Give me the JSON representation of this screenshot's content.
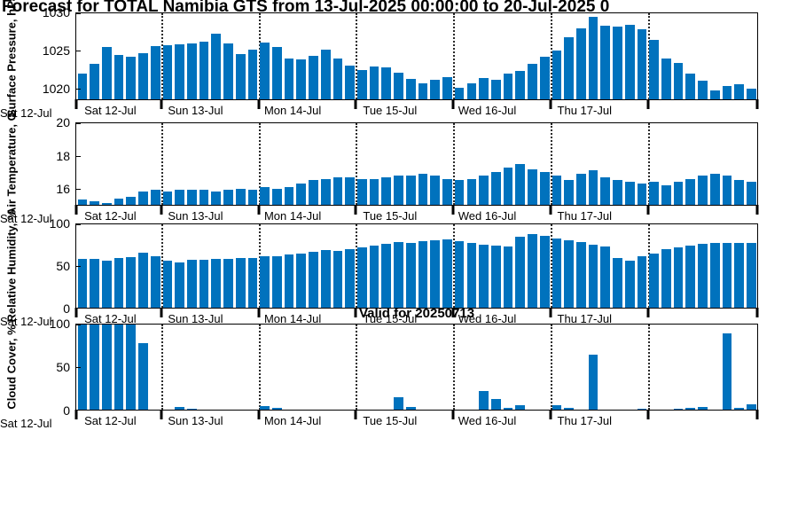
{
  "title": "Forecast for TOTAL Namibia GTS from 13-Jul-2025 00:00:00 to 20-Jul-2025 0",
  "annotation": "Valid for 20250713",
  "colors": {
    "bar": "#0072BD",
    "grid": "#2a2a2a",
    "axis": "#000000"
  },
  "x_axis": {
    "day_labels": [
      "Sat 12-Jul",
      "Sun 13-Jul",
      "Mon 14-Jul",
      "Tue 15-Jul",
      "Wed 16-Jul",
      "Thu 17-Jul"
    ],
    "left_edge_label": "Sat 12-Jul",
    "day_boundaries": [
      0,
      7,
      15,
      23,
      31,
      39,
      47
    ],
    "n_bars": 56,
    "gridlines": "vertical-dotted-at-day-boundaries"
  },
  "chart_data": [
    {
      "type": "bar",
      "ylabel": "Surface Pressure, hPa",
      "ylim": [
        1018.5,
        1030
      ],
      "yticks": [
        1020,
        1025,
        1030
      ],
      "values": [
        1021.9,
        1023.2,
        1025.5,
        1024.4,
        1024.2,
        1024.7,
        1025.6,
        1025.7,
        1025.8,
        1026.0,
        1026.2,
        1027.3,
        1026.0,
        1024.6,
        1025.1,
        1026.1,
        1025.5,
        1023.9,
        1023.8,
        1024.3,
        1025.1,
        1024.0,
        1023.0,
        1022.4,
        1022.9,
        1022.8,
        1022.0,
        1021.2,
        1020.6,
        1021.1,
        1021.5,
        1020.0,
        1020.6,
        1021.4,
        1021.1,
        1021.9,
        1022.3,
        1023.3,
        1024.2,
        1025.0,
        1026.8,
        1028.0,
        1029.5,
        1028.4,
        1028.2,
        1028.5,
        1027.9,
        1026.4,
        1023.9,
        1023.4,
        1021.9,
        1021.0,
        1019.7,
        1020.3,
        1020.5,
        1019.9
      ]
    },
    {
      "type": "bar",
      "ylabel": "Air Temperature, C",
      "ylim": [
        15,
        20
      ],
      "yticks": [
        16,
        18,
        20
      ],
      "values": [
        15.3,
        15.2,
        15.1,
        15.4,
        15.5,
        15.8,
        15.9,
        15.8,
        15.9,
        15.9,
        15.9,
        15.8,
        15.9,
        16.0,
        15.9,
        16.1,
        16.0,
        16.1,
        16.3,
        16.5,
        16.6,
        16.7,
        16.7,
        16.6,
        16.6,
        16.7,
        16.8,
        16.8,
        16.9,
        16.8,
        16.6,
        16.5,
        16.6,
        16.8,
        17.0,
        17.3,
        17.5,
        17.2,
        17.0,
        16.8,
        16.5,
        16.9,
        17.1,
        16.7,
        16.5,
        16.4,
        16.3,
        16.4,
        16.2,
        16.4,
        16.6,
        16.8,
        16.9,
        16.8,
        16.5,
        16.4
      ]
    },
    {
      "type": "bar",
      "ylabel": "Relative Humidity, %",
      "ylim": [
        0,
        100
      ],
      "yticks": [
        0,
        50,
        100
      ],
      "values": [
        58,
        58,
        56,
        60,
        61,
        66,
        62,
        56,
        54,
        57,
        57,
        58,
        58,
        60,
        60,
        62,
        62,
        64,
        65,
        67,
        69,
        68,
        70,
        72,
        74,
        77,
        79,
        78,
        80,
        81,
        82,
        80,
        78,
        76,
        75,
        73,
        85,
        88,
        86,
        83,
        81,
        79,
        76,
        73,
        60,
        56,
        62,
        65,
        70,
        72,
        75,
        77,
        78,
        78,
        78,
        78
      ]
    },
    {
      "type": "bar",
      "ylabel": "Cloud Cover, %",
      "ylim": [
        0,
        100
      ],
      "yticks": [
        0,
        50,
        100
      ],
      "values": [
        100,
        100,
        100,
        100,
        100,
        78,
        0,
        0,
        3,
        1,
        0,
        0,
        0,
        0,
        0,
        4,
        2,
        0,
        0,
        0,
        0,
        0,
        0,
        0,
        0,
        0,
        15,
        3,
        0,
        0,
        0,
        0,
        0,
        22,
        13,
        2,
        5,
        0,
        0,
        5,
        2,
        0,
        65,
        0,
        0,
        0,
        1,
        0,
        0,
        1,
        2,
        3,
        0,
        90,
        2,
        6
      ]
    }
  ]
}
